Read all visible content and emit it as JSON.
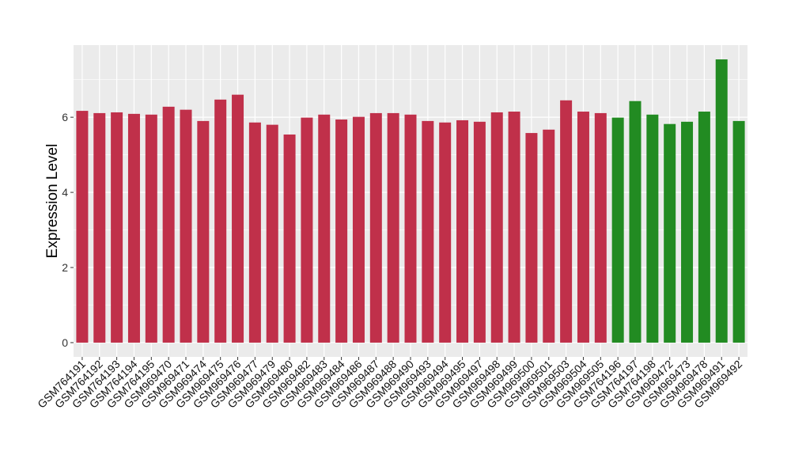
{
  "chart_data": {
    "type": "bar",
    "title": "",
    "xlabel": "",
    "ylabel": "Expression Level",
    "ylim": [
      -0.38,
      7.92
    ],
    "yticks": [
      0,
      2,
      4,
      6
    ],
    "grid": true,
    "colors": {
      "group1": "#C0304A",
      "group2": "#228B22",
      "panel": "#EBEBEB",
      "grid": "#FFFFFF"
    },
    "categories": [
      "GSM764191",
      "GSM764192",
      "GSM764193",
      "GSM764194",
      "GSM764195",
      "GSM969470",
      "GSM969471",
      "GSM969474",
      "GSM969475",
      "GSM969476",
      "GSM969477",
      "GSM969479",
      "GSM969480",
      "GSM969482",
      "GSM969483",
      "GSM969484",
      "GSM969486",
      "GSM969487",
      "GSM969488",
      "GSM969490",
      "GSM969493",
      "GSM969494",
      "GSM969495",
      "GSM969497",
      "GSM969498",
      "GSM969499",
      "GSM969500",
      "GSM969501",
      "GSM969503",
      "GSM969504",
      "GSM969505",
      "GSM764196",
      "GSM764197",
      "GSM764198",
      "GSM969472",
      "GSM969473",
      "GSM969478",
      "GSM969491",
      "GSM969492"
    ],
    "values": [
      6.17,
      6.11,
      6.13,
      6.09,
      6.07,
      6.28,
      6.2,
      5.9,
      6.47,
      6.6,
      5.86,
      5.8,
      5.54,
      5.99,
      6.07,
      5.94,
      6.01,
      6.11,
      6.11,
      6.07,
      5.9,
      5.86,
      5.92,
      5.88,
      6.13,
      6.15,
      5.58,
      5.67,
      6.45,
      6.15,
      6.11,
      5.99,
      6.43,
      6.07,
      5.82,
      5.88,
      6.15,
      7.54,
      5.9
    ],
    "groups": [
      1,
      1,
      1,
      1,
      1,
      1,
      1,
      1,
      1,
      1,
      1,
      1,
      1,
      1,
      1,
      1,
      1,
      1,
      1,
      1,
      1,
      1,
      1,
      1,
      1,
      1,
      1,
      1,
      1,
      1,
      1,
      2,
      2,
      2,
      2,
      2,
      2,
      2,
      2
    ]
  }
}
